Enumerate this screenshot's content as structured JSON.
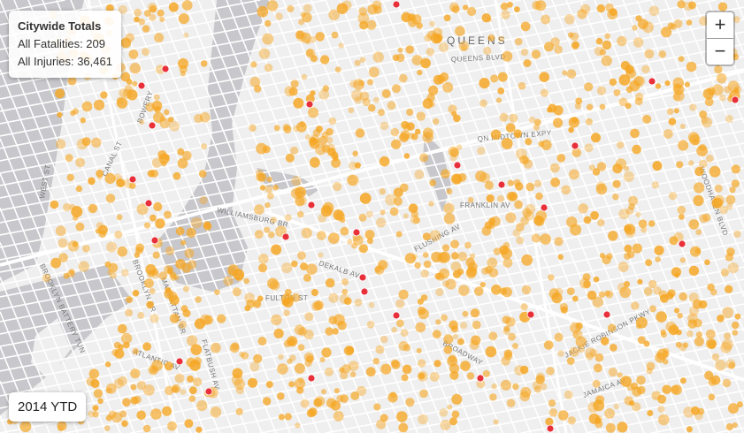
{
  "info": {
    "title": "Citywide Totals",
    "fatalities": "All Fatalities: 209",
    "injuries": "All Injuries: 36,461"
  },
  "zoom": {
    "in_label": "+",
    "out_label": "−"
  },
  "year_label": "2014 YTD",
  "map": {
    "borough_label": "QUEENS",
    "street_labels": [
      "QUEENS BLVD",
      "QN MIDTOWN EXPY",
      "WILLIAMSBURG BR",
      "FLUSHING AV",
      "BROADWAY",
      "WOODHAVEN BLVD",
      "JACKIE ROBINSON PKWY",
      "JAMAICA AV",
      "ATLANTIC AV",
      "FLATBUSH AV",
      "BROOKLYN BR",
      "MANHATTAN BR",
      "BROOKLYN BATTERY TUN",
      "WEST ST",
      "CANAL ST",
      "BOWERY",
      "DEKALB AV",
      "FULTON ST",
      "FRANKLIN AV"
    ],
    "colors": {
      "land": "#f2f2f2",
      "water": "#c8c8cc",
      "street": "#ffffff",
      "injury": "#f5a623",
      "fatality": "#e8303a"
    }
  }
}
